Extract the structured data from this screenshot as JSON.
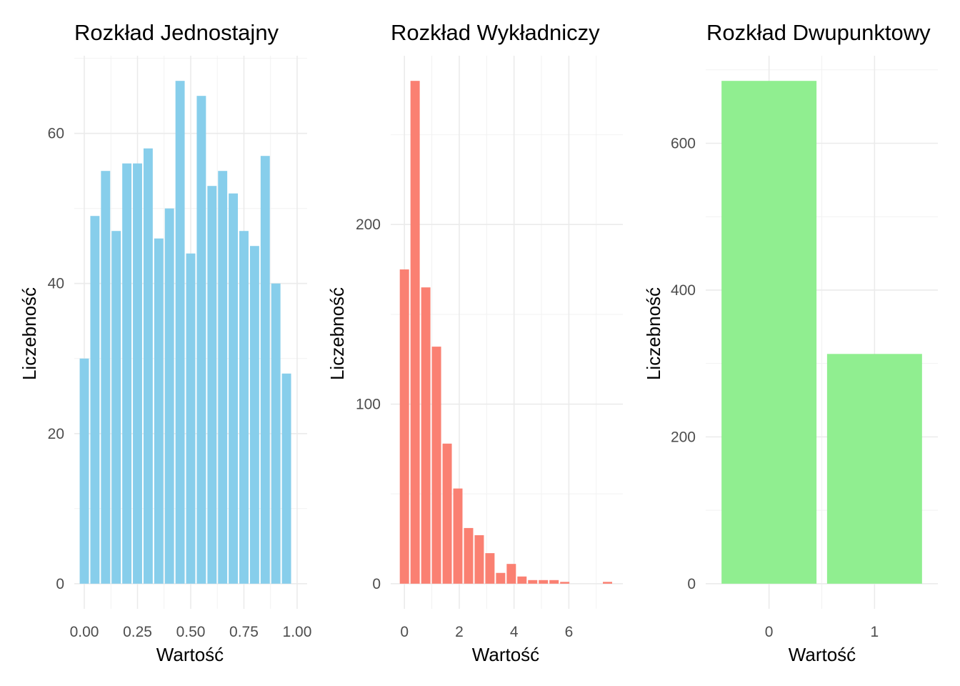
{
  "chart_data": [
    {
      "type": "bar",
      "title": "Rozkład Jednostajny",
      "xlabel": "Wartość",
      "ylabel": "Liczebność",
      "color": "#87CEEB",
      "x": [
        0.0,
        0.05,
        0.1,
        0.15,
        0.2,
        0.25,
        0.3,
        0.35,
        0.4,
        0.45,
        0.5,
        0.55,
        0.6,
        0.65,
        0.7,
        0.75,
        0.8,
        0.85,
        0.9,
        0.95,
        1.0
      ],
      "values": [
        30,
        49,
        55,
        47,
        56,
        56,
        58,
        46,
        50,
        67,
        44,
        65,
        53,
        55,
        52,
        47,
        45,
        57,
        40,
        28,
        0
      ],
      "bin_width": 0.05,
      "xlim": [
        -0.047,
        1.047
      ],
      "ylim": [
        -3.35,
        70.35
      ],
      "x_ticks": [
        0.0,
        0.25,
        0.5,
        0.75,
        1.0
      ],
      "x_tick_labels": [
        "0.00",
        "0.25",
        "0.50",
        "0.75",
        "1.00"
      ],
      "y_ticks": [
        0,
        20,
        40,
        60
      ],
      "y_tick_labels": [
        "0",
        "20",
        "40",
        "60"
      ],
      "grid": true
    },
    {
      "type": "bar",
      "title": "Rozkład Wykładniczy",
      "xlabel": "Wartość",
      "ylabel": "Liczebność",
      "color": "#FA8072",
      "x": [
        0.0,
        0.39,
        0.78,
        1.17,
        1.56,
        1.95,
        2.34,
        2.73,
        3.12,
        3.51,
        3.9,
        4.29,
        4.68,
        5.07,
        5.46,
        5.85,
        6.24,
        6.63,
        7.02,
        7.41
      ],
      "values": [
        175,
        280,
        165,
        132,
        78,
        53,
        31,
        27,
        17,
        6,
        11,
        4,
        2,
        2,
        2,
        1,
        0,
        0,
        0,
        1
      ],
      "bin_width": 0.39,
      "xlim": [
        -0.5,
        7.97
      ],
      "ylim": [
        -14,
        294
      ],
      "x_ticks": [
        0,
        2,
        4,
        6
      ],
      "x_tick_labels": [
        "0",
        "2",
        "4",
        "6"
      ],
      "y_ticks": [
        0,
        100,
        200
      ],
      "y_tick_labels": [
        "0",
        "100",
        "200"
      ],
      "grid": true
    },
    {
      "type": "bar",
      "title": "Rozkład Dwupunktowy",
      "xlabel": "Wartość",
      "ylabel": "Liczebność",
      "color": "#90EE90",
      "categories": [
        "0",
        "1"
      ],
      "values": [
        685,
        313
      ],
      "ylim": [
        -34.25,
        719.25
      ],
      "y_ticks": [
        0,
        200,
        400,
        600
      ],
      "y_tick_labels": [
        "0",
        "200",
        "400",
        "600"
      ],
      "grid": true
    }
  ]
}
